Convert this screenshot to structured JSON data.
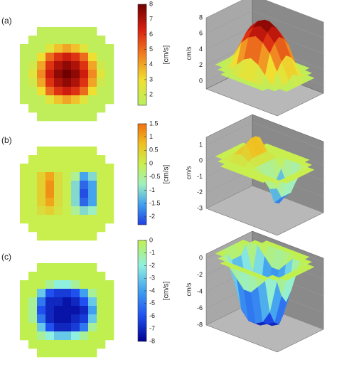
{
  "chart_data": [
    {
      "type": "heatmap",
      "panel_label": "(a)",
      "colorbar_label": "[cm/s]",
      "z_label": "cm/s",
      "colormap": [
        "#b8f060",
        "#f0e030",
        "#f08020",
        "#d82010",
        "#700000"
      ],
      "clim": [
        1.3,
        8
      ],
      "cticks": [
        2,
        3,
        4,
        5,
        6,
        7,
        8
      ],
      "zlim": [
        -1,
        8
      ],
      "zticks": [
        0,
        2,
        4,
        6,
        8
      ],
      "values": [
        [
          null,
          null,
          1.5,
          1.5,
          1.5,
          1.5,
          1.5,
          1.5,
          1.5,
          null,
          null
        ],
        [
          null,
          1.5,
          1.5,
          1.5,
          1.5,
          1.5,
          1.5,
          1.5,
          1.5,
          1.5,
          null
        ],
        [
          1.5,
          1.5,
          1.5,
          2.5,
          3.5,
          4,
          3.5,
          2.5,
          1.5,
          1.5,
          1.5
        ],
        [
          1.5,
          1.5,
          3,
          5,
          6,
          6.5,
          6,
          5,
          3,
          1.5,
          1.5
        ],
        [
          1.5,
          2,
          4,
          6,
          7,
          7.5,
          7,
          6,
          4,
          2,
          1.5
        ],
        [
          1.5,
          2.5,
          4.5,
          6.5,
          7.5,
          8,
          7.5,
          6.5,
          4.5,
          2.5,
          1.5
        ],
        [
          1.5,
          2,
          4,
          6,
          7,
          7.5,
          7,
          6,
          4,
          2,
          1.5
        ],
        [
          1.5,
          1.5,
          3,
          5,
          6,
          6.5,
          6,
          5,
          3,
          1.5,
          1.5
        ],
        [
          1.5,
          1.5,
          1.5,
          2.5,
          3.5,
          4,
          3.5,
          2.5,
          1.5,
          1.5,
          1.5
        ],
        [
          null,
          1.5,
          1.5,
          1.5,
          1.5,
          1.5,
          1.5,
          1.5,
          1.5,
          1.5,
          null
        ],
        [
          null,
          null,
          1.5,
          1.5,
          1.5,
          1.5,
          1.5,
          1.5,
          1.5,
          null,
          null
        ]
      ]
    },
    {
      "type": "heatmap",
      "panel_label": "(b)",
      "colorbar_label": "[cm/s]",
      "z_label": "cm/s",
      "colormap": [
        "#2040e0",
        "#40a0f0",
        "#a0f0c0",
        "#c8f050",
        "#f0c020",
        "#f07010"
      ],
      "clim": [
        -2.3,
        1.5
      ],
      "cticks": [
        1.5,
        1,
        0.5,
        0,
        -0.5,
        -1,
        -1.5,
        -2
      ],
      "zlim": [
        -3,
        1.5
      ],
      "zticks": [
        1,
        0,
        -1,
        -2,
        -3
      ],
      "values": [
        [
          null,
          null,
          0,
          0,
          0,
          0,
          0,
          0,
          0,
          null,
          null
        ],
        [
          null,
          0,
          0,
          0,
          0,
          0,
          0,
          0,
          0,
          0,
          null
        ],
        [
          0,
          0,
          0,
          0,
          0,
          0,
          0,
          0,
          0,
          0,
          0
        ],
        [
          0,
          0,
          0.5,
          1,
          0.3,
          0,
          -0.5,
          -1.5,
          -1,
          0,
          0
        ],
        [
          0,
          0,
          0.5,
          1.2,
          0.3,
          0,
          -1,
          -2,
          -1.5,
          0,
          0
        ],
        [
          0,
          0,
          0.5,
          1.2,
          0.3,
          0,
          -1,
          -2.2,
          -1.5,
          0,
          0
        ],
        [
          0,
          0,
          0.5,
          1,
          0.3,
          0,
          -1,
          -2,
          -1.5,
          0,
          0
        ],
        [
          0,
          0,
          0.3,
          0.5,
          0.2,
          0,
          -0.5,
          -1,
          -0.8,
          0,
          0
        ],
        [
          0,
          0,
          0,
          0,
          0,
          0,
          0,
          0,
          0,
          0,
          0
        ],
        [
          null,
          0,
          0,
          0,
          0,
          0,
          0,
          0,
          0,
          0,
          null
        ],
        [
          null,
          null,
          0,
          0,
          0,
          0,
          0,
          0,
          0,
          null,
          null
        ]
      ]
    },
    {
      "type": "heatmap",
      "panel_label": "(c)",
      "colorbar_label": "[cm/s]",
      "z_label": "cm/s",
      "colormap": [
        "#000090",
        "#2050f0",
        "#40a0f0",
        "#90f0e0",
        "#c0f050"
      ],
      "clim": [
        -8,
        0
      ],
      "cticks": [
        0,
        -1,
        -2,
        -3,
        -4,
        -5,
        -6,
        -7,
        -8
      ],
      "zlim": [
        -8,
        0.5
      ],
      "zticks": [
        0,
        -2,
        -4,
        -6,
        -8
      ],
      "values": [
        [
          null,
          null,
          0,
          0,
          0,
          0,
          0,
          0,
          0,
          null,
          null
        ],
        [
          null,
          0,
          0,
          0,
          0,
          0,
          0,
          0,
          0,
          0,
          null
        ],
        [
          0,
          0,
          0,
          -1,
          -2,
          -2,
          -1,
          0,
          0,
          0,
          0
        ],
        [
          0,
          0,
          -3,
          -6,
          -6.5,
          -6.5,
          -6,
          -4,
          -1,
          0,
          0
        ],
        [
          0,
          -1,
          -5,
          -7,
          -7,
          -7.5,
          -7,
          -6,
          -3,
          0,
          0
        ],
        [
          0,
          -1,
          -6,
          -7,
          -7.5,
          -7.5,
          -7.5,
          -7,
          -4,
          0,
          0
        ],
        [
          0,
          -1,
          -5,
          -7,
          -7.5,
          -7.5,
          -7,
          -6.5,
          -3,
          0,
          0
        ],
        [
          0,
          0,
          -3,
          -6,
          -7,
          -7,
          -6.5,
          -5,
          -1,
          0,
          0
        ],
        [
          0,
          0,
          -1,
          -2,
          -3,
          -3,
          -2,
          -1,
          0,
          0,
          0
        ],
        [
          null,
          0,
          0,
          0,
          0,
          0,
          0,
          0,
          0,
          0,
          null
        ],
        [
          null,
          null,
          0,
          0,
          0,
          0,
          0,
          0,
          0,
          null,
          null
        ]
      ]
    }
  ]
}
